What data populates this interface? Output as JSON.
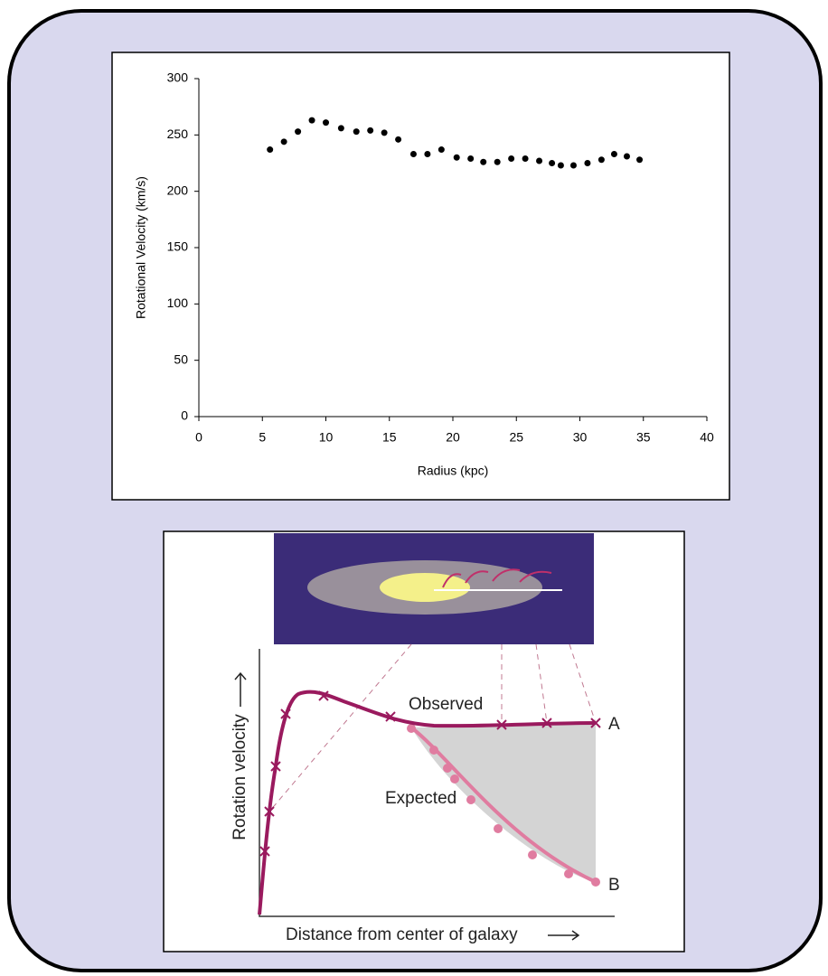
{
  "chart_data": {
    "type": "scatter",
    "x_label": "Radius (kpc)",
    "y_label": "Rotational Velocity (km/s)",
    "x": [
      5.6,
      6.7,
      7.8,
      8.9,
      10.0,
      11.2,
      12.4,
      13.5,
      14.6,
      15.7,
      16.9,
      18.0,
      19.1,
      20.3,
      21.4,
      22.4,
      23.5,
      24.6,
      25.7,
      26.8,
      27.8,
      28.5,
      29.5,
      30.6,
      31.7,
      32.7,
      33.7,
      34.7
    ],
    "values": [
      237,
      244,
      253,
      263,
      261,
      256,
      253,
      254,
      252,
      246,
      233,
      233,
      237,
      230,
      229,
      226,
      226,
      229,
      229,
      227,
      225,
      223,
      223,
      225,
      228,
      233,
      231,
      228
    ],
    "color": "#000000",
    "xlim": [
      0,
      40
    ],
    "xticks": [
      0,
      5,
      10,
      15,
      20,
      25,
      30,
      35,
      40
    ],
    "ylim": [
      0,
      300
    ],
    "yticks": [
      0,
      50,
      100,
      150,
      200,
      250,
      300
    ],
    "grid": false
  },
  "diagram": {
    "observed": "Observed",
    "expected": "Expected",
    "end_a": "A",
    "end_b": "B",
    "y_axis": "Rotation velocity",
    "x_axis": "Distance from center of galaxy"
  }
}
